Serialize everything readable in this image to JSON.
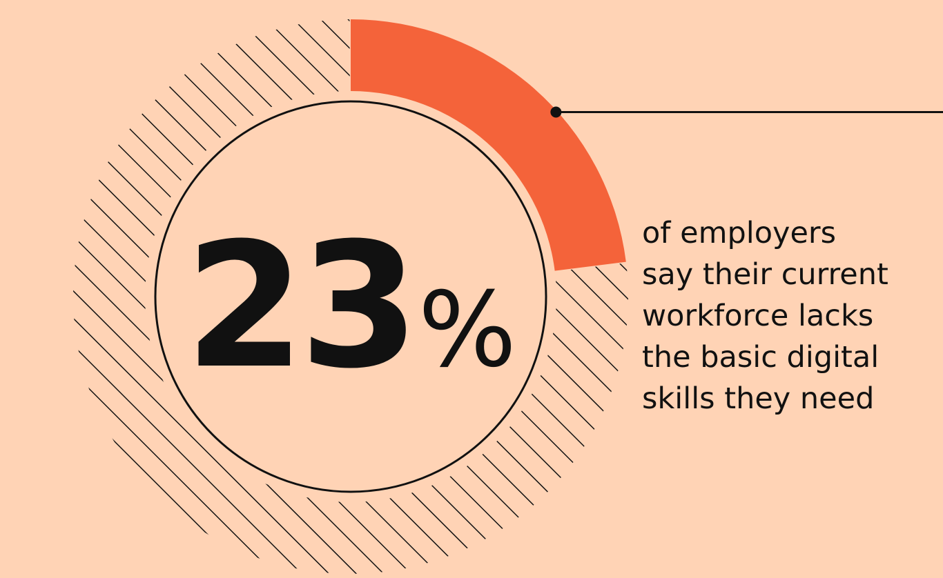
{
  "colors": {
    "background": "#FFD3B5",
    "accent": "#F4633A",
    "ink": "#111111"
  },
  "chart_data": {
    "type": "pie",
    "style": "donut",
    "values": [
      23,
      77
    ],
    "highlight_label": "23",
    "unit": "%",
    "caption": [
      "of employers",
      "say their current",
      "workforce lacks",
      "the basic digital",
      "skills they need"
    ]
  }
}
